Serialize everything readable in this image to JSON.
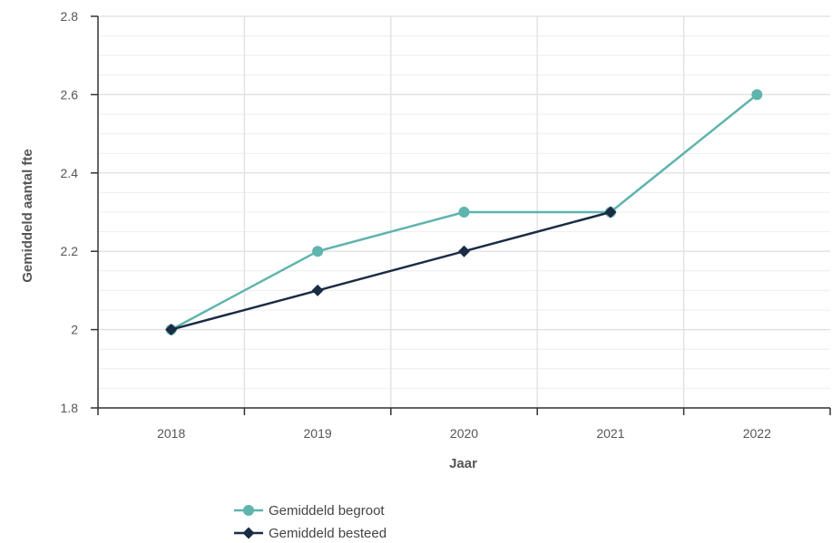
{
  "chart_data": {
    "type": "line",
    "title": "",
    "xlabel": "Jaar",
    "ylabel": "Gemiddeld aantal fte",
    "categories": [
      "2018",
      "2019",
      "2020",
      "2021",
      "2022"
    ],
    "yticks": [
      "1.8",
      "2",
      "2.2",
      "2.4",
      "2.6",
      "2.8"
    ],
    "ylim": [
      1.8,
      2.8
    ],
    "grid": true,
    "legend_position": "bottom-center",
    "series": [
      {
        "name": "Gemiddeld begroot",
        "color": "#5fb4ad",
        "marker": "circle",
        "values": [
          2.0,
          2.2,
          2.3,
          2.3,
          2.6
        ]
      },
      {
        "name": "Gemiddeld besteed",
        "color": "#1b2b44",
        "marker": "diamond",
        "values": [
          2.0,
          2.1,
          2.2,
          2.3,
          null
        ]
      }
    ]
  }
}
